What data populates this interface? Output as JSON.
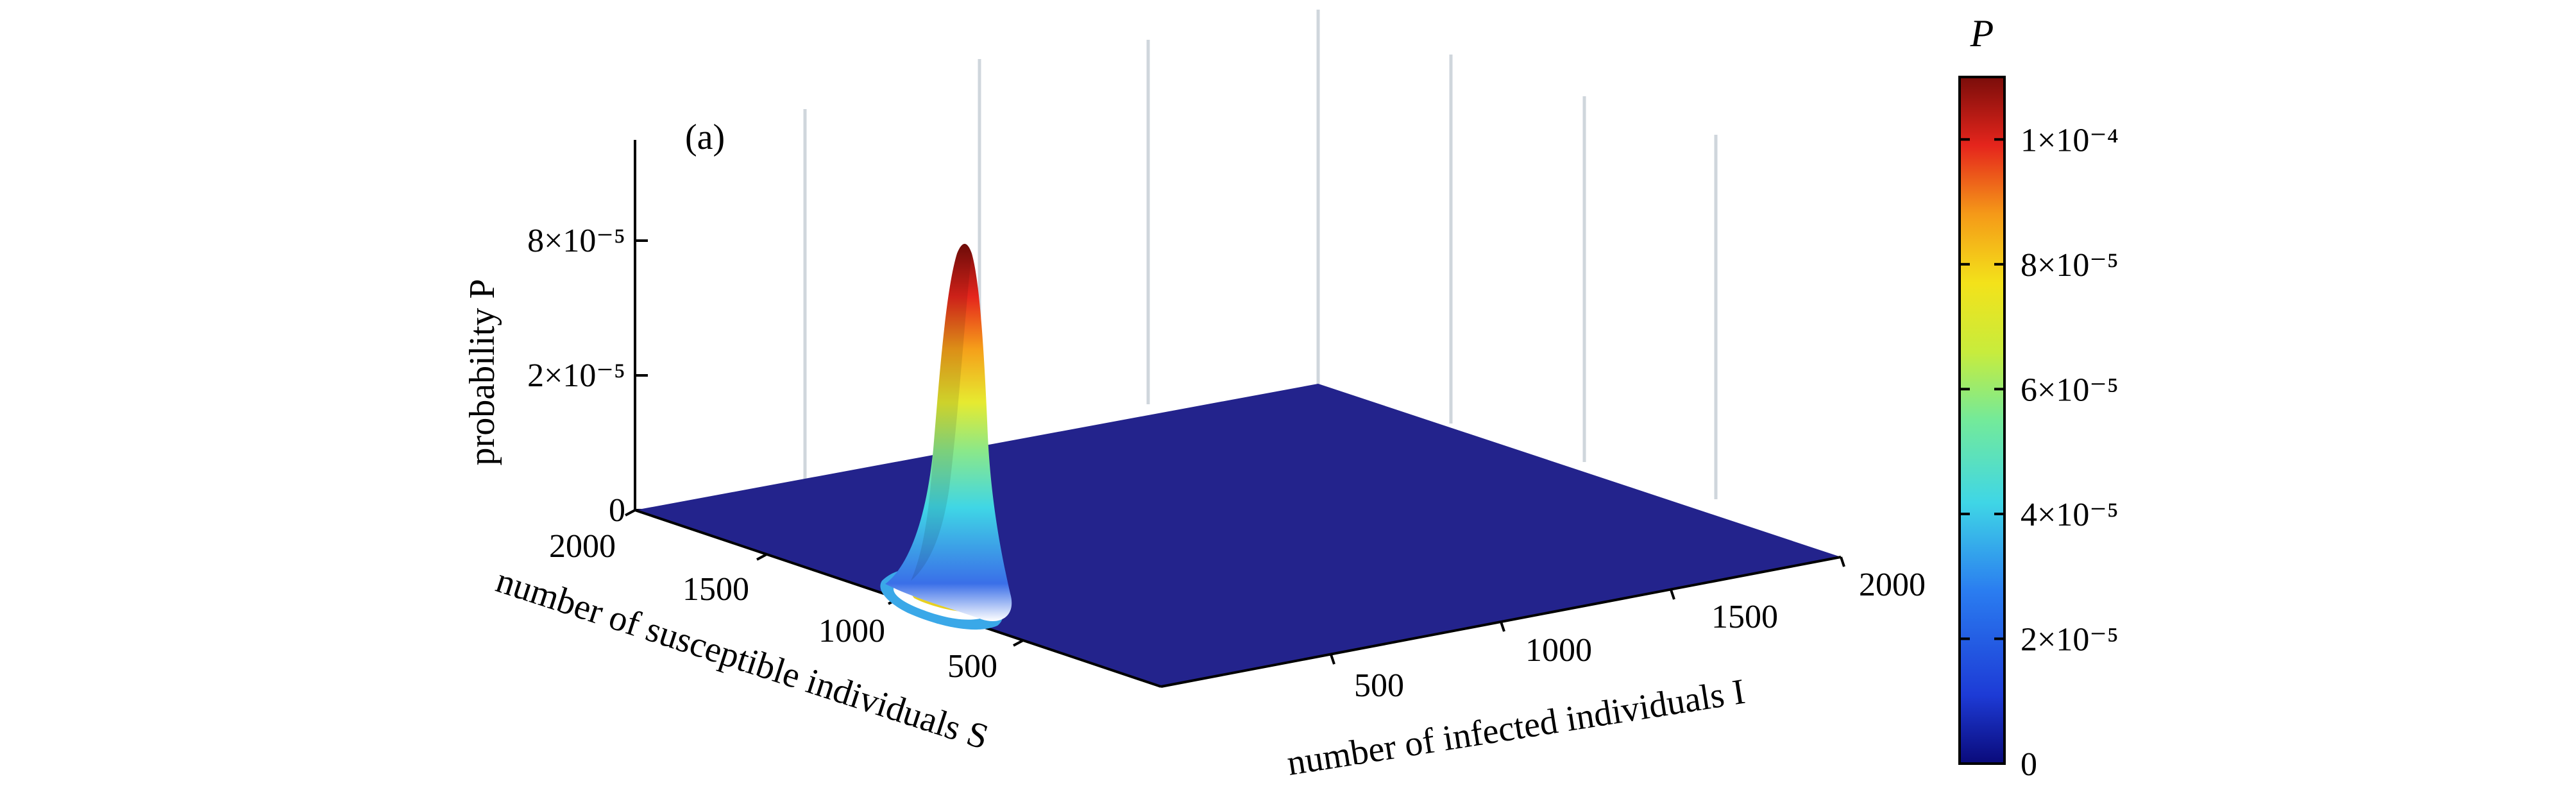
{
  "chart_data": {
    "type": "surface",
    "panel_label": "(a)",
    "xlabel": "number of infected individuals I",
    "ylabel": "number of susceptible individuals S",
    "zlabel": "probability P",
    "x_ticks": [
      "500",
      "1000",
      "1500",
      "2000"
    ],
    "y_ticks": [
      "500",
      "1000",
      "1500",
      "2000"
    ],
    "z_ticks": [
      "0",
      "2×10⁻⁵",
      "8×10⁻⁵"
    ],
    "xlim": [
      0,
      2000
    ],
    "ylim": [
      0,
      2000
    ],
    "zlim": [
      0,
      0.00011
    ],
    "peak": {
      "I": 60,
      "S": 820,
      "P": 7.8e-05
    },
    "grid": true,
    "colorbar": {
      "title": "P",
      "range": [
        0,
        0.00011
      ],
      "ticks": [
        "0",
        "2×10⁻⁵",
        "4×10⁻⁵",
        "6×10⁻⁵",
        "8×10⁻⁵",
        "1×10⁻⁴"
      ],
      "colormap": "jet",
      "base_color": "#23238c"
    }
  }
}
